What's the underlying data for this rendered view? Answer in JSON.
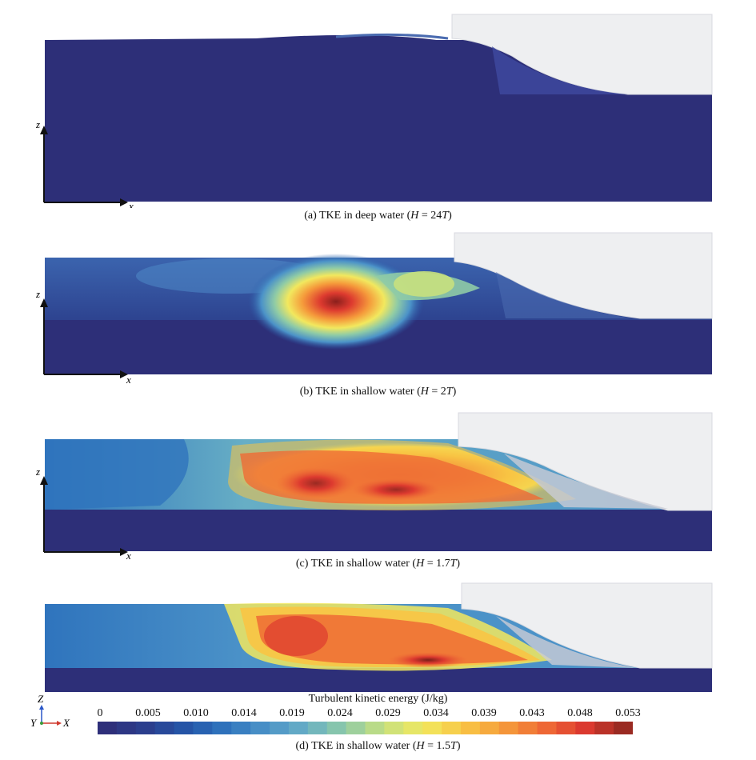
{
  "panels": [
    {
      "id": "a",
      "caption_pre": "(a) TKE in deep water (",
      "caption_var": "H",
      "caption_val": " = 24",
      "caption_unit": "T",
      "caption_post": ")"
    },
    {
      "id": "b",
      "caption_pre": "(b) TKE in shallow water (",
      "caption_var": "H",
      "caption_val": " = 2",
      "caption_unit": "T",
      "caption_post": ")"
    },
    {
      "id": "c",
      "caption_pre": "(c) TKE in shallow water (",
      "caption_var": "H",
      "caption_val": " = 1.7",
      "caption_unit": "T",
      "caption_post": ")"
    },
    {
      "id": "d",
      "caption_pre": "(d) TKE in shallow water (",
      "caption_var": "H",
      "caption_val": " = 1.5",
      "caption_unit": "T",
      "caption_post": ")"
    }
  ],
  "axes": {
    "z": "z",
    "x": "x"
  },
  "triad": {
    "Z": "Z",
    "Y": "Y",
    "X": "X"
  },
  "colorbar": {
    "title": "Turbulent kinetic energy (J/kg)",
    "ticks": [
      "0",
      "0.005",
      "0.010",
      "0.014",
      "0.019",
      "0.024",
      "0.029",
      "0.034",
      "0.039",
      "0.043",
      "0.048",
      "0.053"
    ],
    "colors": [
      "#2e2f7a",
      "#2b3f8e",
      "#2456a8",
      "#2f74bd",
      "#4b92c8",
      "#67aec5",
      "#8fcba6",
      "#c8e07e",
      "#f2e85e",
      "#f8c444",
      "#f59a3b",
      "#ef6b35",
      "#dd3a2f",
      "#9a2a22"
    ]
  },
  "colors": {
    "deep": "#2d2f78",
    "hull": "#eeeff1",
    "hull_edge": "#c9ccd6"
  }
}
